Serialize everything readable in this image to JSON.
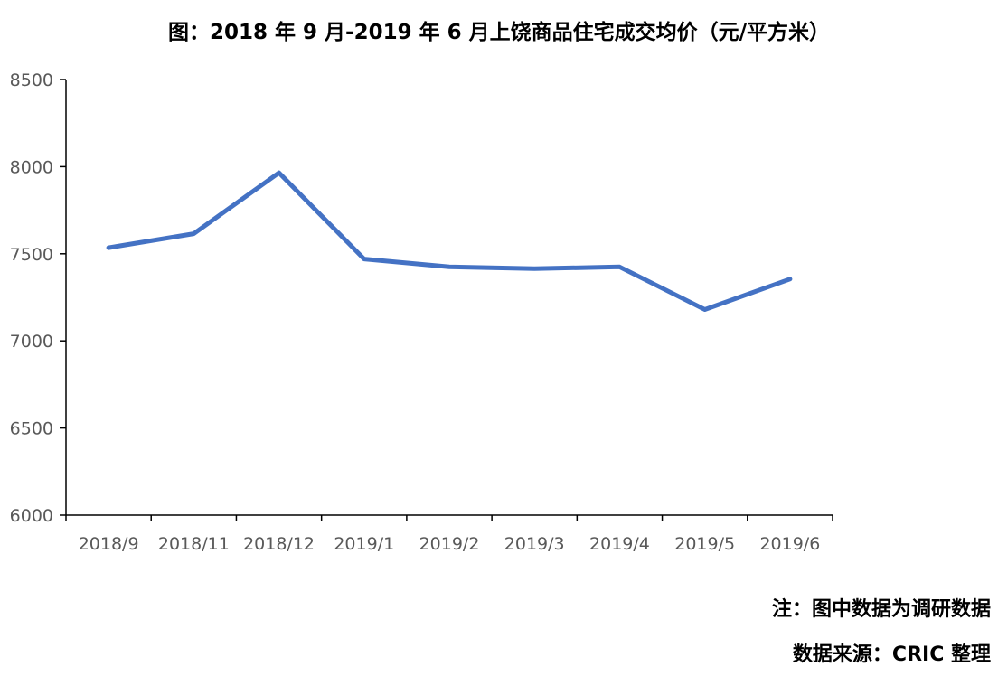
{
  "chart_data": {
    "type": "line",
    "title": "图：2018 年 9 月-2019 年 6 月上饶商品住宅成交均价（元/平方米）",
    "categories": [
      "2018/9",
      "2018/11",
      "2018/12",
      "2019/1",
      "2019/2",
      "2019/3",
      "2019/4",
      "2019/5",
      "2019/6"
    ],
    "series": [
      {
        "values": [
          7535,
          7615,
          7965,
          7470,
          7425,
          7415,
          7425,
          7180,
          7355
        ]
      }
    ],
    "xlabel": "",
    "ylabel": "",
    "ylim": [
      6000,
      8500
    ],
    "yticks": [
      "6000",
      "6500",
      "7000",
      "7500",
      "8000",
      "8500"
    ],
    "grid": false,
    "legend": "none",
    "line_color": "#4472C4"
  },
  "notes": {
    "note": "注：图中数据为调研数据",
    "source": "数据来源：CRIC 整理"
  }
}
